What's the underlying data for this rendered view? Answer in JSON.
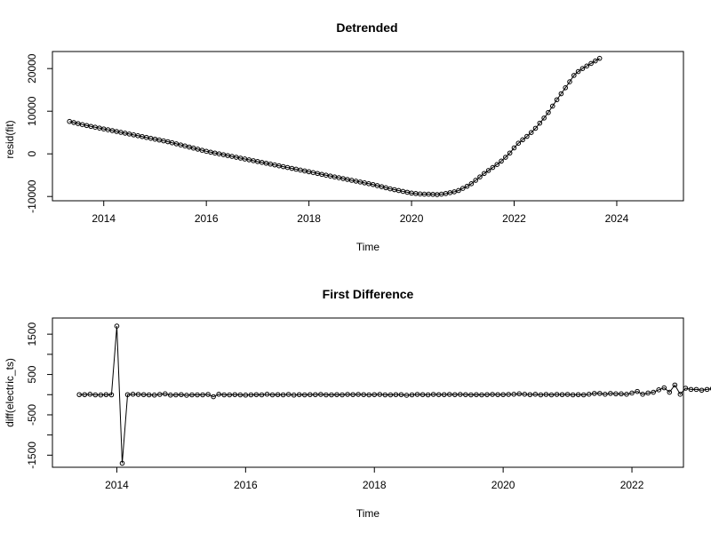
{
  "chart_data": [
    {
      "type": "line",
      "title": "Detrended",
      "xlabel": "Time",
      "ylabel": "resid(fit)",
      "xlim": [
        2013.0,
        2025.3
      ],
      "ylim": [
        -11000,
        24000
      ],
      "x_ticks": [
        2014,
        2016,
        2018,
        2020,
        2022,
        2024
      ],
      "y_ticks": [
        -10000,
        0,
        10000,
        20000
      ],
      "x_tick_labels": [
        "2014",
        "2016",
        "2018",
        "2020",
        "2022",
        "2024"
      ],
      "y_tick_labels": [
        "-10000",
        "0",
        "10000",
        "20000"
      ],
      "grid": false,
      "series": [
        {
          "start": 2013.333,
          "step": 0.08333,
          "values": [
            7600,
            7350,
            7100,
            6850,
            6650,
            6450,
            6250,
            6050,
            5850,
            5650,
            5450,
            5250,
            5050,
            4850,
            4650,
            4450,
            4250,
            4050,
            3850,
            3650,
            3450,
            3250,
            3050,
            2850,
            2600,
            2350,
            2100,
            1850,
            1600,
            1350,
            1100,
            850,
            600,
            400,
            200,
            0,
            -200,
            -400,
            -600,
            -800,
            -1000,
            -1200,
            -1400,
            -1600,
            -1800,
            -2000,
            -2200,
            -2400,
            -2600,
            -2800,
            -3000,
            -3200,
            -3400,
            -3600,
            -3800,
            -4000,
            -4200,
            -4400,
            -4600,
            -4800,
            -5000,
            -5200,
            -5400,
            -5600,
            -5800,
            -6000,
            -6200,
            -6400,
            -6600,
            -6800,
            -7000,
            -7200,
            -7450,
            -7700,
            -7950,
            -8200,
            -8400,
            -8600,
            -8800,
            -9000,
            -9200,
            -9300,
            -9400,
            -9450,
            -9450,
            -9500,
            -9550,
            -9450,
            -9300,
            -9100,
            -8900,
            -8600,
            -8100,
            -7600,
            -7000,
            -6200,
            -5400,
            -4600,
            -3900,
            -3200,
            -2500,
            -1700,
            -800,
            200,
            1400,
            2500,
            3300,
            4100,
            5000,
            6000,
            7200,
            8400,
            9700,
            11200,
            12700,
            14100,
            15500,
            16900,
            18400,
            19300,
            20000,
            20600,
            21200,
            21800,
            22400
          ]
        }
      ]
    },
    {
      "type": "line",
      "title": "First Difference",
      "xlabel": "Time",
      "ylabel": "diff(electric_ts)",
      "xlim": [
        2013.0,
        2022.8
      ],
      "ylim": [
        -1800,
        1900
      ],
      "x_ticks": [
        2014,
        2016,
        2018,
        2020,
        2022
      ],
      "y_ticks": [
        -1500,
        -1000,
        -500,
        0,
        500,
        1000,
        1500
      ],
      "x_tick_labels": [
        "2014",
        "2016",
        "2018",
        "2020",
        "2022"
      ],
      "y_tick_labels": [
        "-1500",
        "",
        "-500",
        "",
        "500",
        "",
        "1500"
      ],
      "grid": false,
      "series": [
        {
          "start": 2013.417,
          "step": 0.08333,
          "values": [
            0,
            0,
            10,
            -5,
            -8,
            0,
            -5,
            1700,
            -1700,
            0,
            10,
            5,
            0,
            -5,
            -10,
            5,
            20,
            -10,
            -5,
            0,
            -15,
            -5,
            -5,
            -5,
            5,
            -50,
            10,
            -5,
            -5,
            0,
            -5,
            -10,
            -5,
            0,
            -5,
            10,
            -5,
            0,
            -5,
            5,
            -10,
            0,
            -5,
            0,
            0,
            5,
            -5,
            -5,
            0,
            -5,
            5,
            0,
            5,
            0,
            -5,
            0,
            5,
            -5,
            -5,
            0,
            0,
            -15,
            -5,
            5,
            0,
            -5,
            5,
            0,
            0,
            5,
            0,
            5,
            0,
            -5,
            0,
            -5,
            0,
            5,
            0,
            0,
            5,
            10,
            20,
            10,
            0,
            10,
            -5,
            5,
            -5,
            5,
            0,
            5,
            -5,
            0,
            -5,
            10,
            30,
            30,
            10,
            30,
            20,
            20,
            10,
            40,
            80,
            10,
            40,
            60,
            120,
            170,
            60,
            240,
            10,
            160,
            130,
            130,
            110,
            130,
            150,
            170,
            170
          ]
        }
      ]
    }
  ]
}
